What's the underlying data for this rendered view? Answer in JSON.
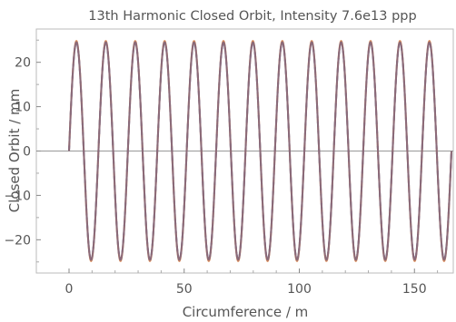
{
  "chart_data": {
    "type": "line",
    "title": "13th Harmonic Closed Orbit, Intensity 7.6e13 ppp",
    "xlabel": "Circumference / m",
    "ylabel": "Closed Orbit / mm",
    "xlim": [
      0,
      166.07
    ],
    "ylim": [
      -27.5,
      27.5
    ],
    "xticks": [
      0,
      50,
      100,
      150
    ],
    "yticks": [
      -20,
      -10,
      0,
      10,
      20
    ],
    "xtick_labels": [
      "0",
      "50",
      "100",
      "150"
    ],
    "ytick_labels": [
      "−20",
      "−10",
      "0",
      "10",
      "20"
    ],
    "grid": false,
    "zero_line": true,
    "series": [
      {
        "function": "sine",
        "amplitude": 24.8,
        "harmonic": 13,
        "phase_deg": 0,
        "color": "#d98a5a",
        "style": "solid"
      },
      {
        "function": "sine",
        "amplitude": 24.5,
        "harmonic": 13,
        "phase_deg": 0,
        "color": "#5c6fb0",
        "style": "dashed"
      },
      {
        "function": "sine",
        "amplitude": 24.5,
        "harmonic": 13,
        "phase_deg": 0,
        "color": "#8b6a78",
        "style": "solid"
      }
    ]
  }
}
